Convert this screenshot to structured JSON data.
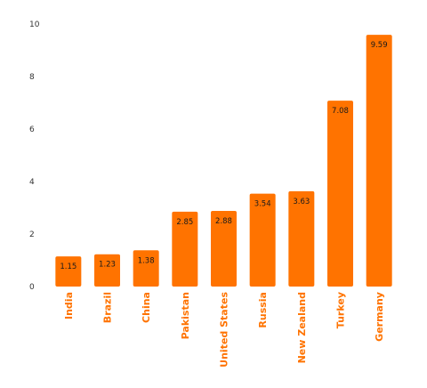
{
  "colors": {
    "bar": "#ff7300",
    "bar_label": "#ff7300"
  },
  "chart_data": {
    "type": "bar",
    "categories": [
      "India",
      "Brazil",
      "China",
      "Pakistan",
      "United States",
      "Russia",
      "New Zealand",
      "Turkey",
      "Germany"
    ],
    "values": [
      1.15,
      1.23,
      1.38,
      2.85,
      2.88,
      3.54,
      3.63,
      7.08,
      9.59
    ],
    "title": "",
    "xlabel": "",
    "ylabel": "",
    "ylim": [
      0,
      10
    ],
    "yticks": [
      0,
      2,
      4,
      6,
      8,
      10
    ],
    "grid": false,
    "legend": "none",
    "data_labels": true
  }
}
